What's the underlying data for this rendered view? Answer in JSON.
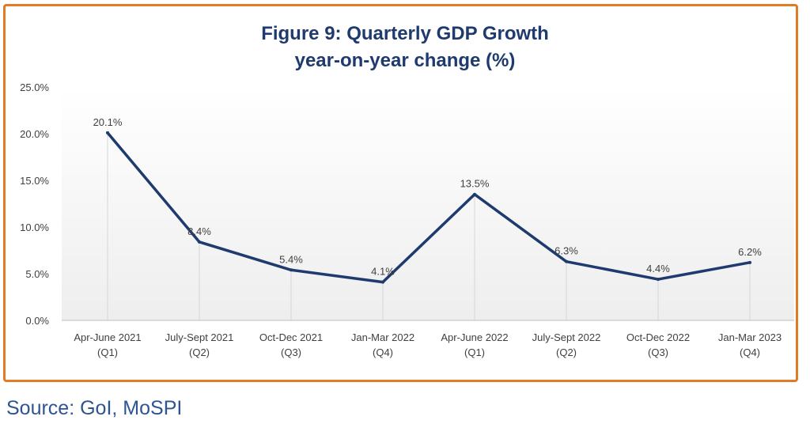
{
  "chart_data": {
    "type": "line",
    "title": "Figure 9: Quarterly GDP Growth",
    "subtitle": "year-on-year change (%)",
    "categories": [
      [
        "Apr-June 2021",
        "(Q1)"
      ],
      [
        "July-Sept 2021",
        "(Q2)"
      ],
      [
        "Oct-Dec 2021",
        "(Q3)"
      ],
      [
        "Jan-Mar 2022",
        "(Q4)"
      ],
      [
        "Apr-June 2022",
        "(Q1)"
      ],
      [
        "July-Sept 2022",
        "(Q2)"
      ],
      [
        "Oct-Dec 2022",
        "(Q3)"
      ],
      [
        "Jan-Mar 2023",
        "(Q4)"
      ]
    ],
    "series": [
      {
        "values": [
          20.1,
          8.4,
          5.4,
          4.1,
          13.5,
          6.3,
          4.4,
          6.2
        ],
        "labels": [
          "20.1%",
          "8.4%",
          "5.4%",
          "4.1%",
          "13.5%",
          "6.3%",
          "4.4%",
          "6.2%"
        ]
      }
    ],
    "ylim": [
      0,
      25
    ],
    "yticks": [
      "0.0%",
      "5.0%",
      "10.0%",
      "15.0%",
      "20.0%",
      "25.0%"
    ],
    "xlabel": "",
    "ylabel": "",
    "grid": "vertical drop lines at each category",
    "line_color": "#1e3a6e",
    "border_color": "#e07b26"
  },
  "source": "Source: GoI, MoSPI"
}
